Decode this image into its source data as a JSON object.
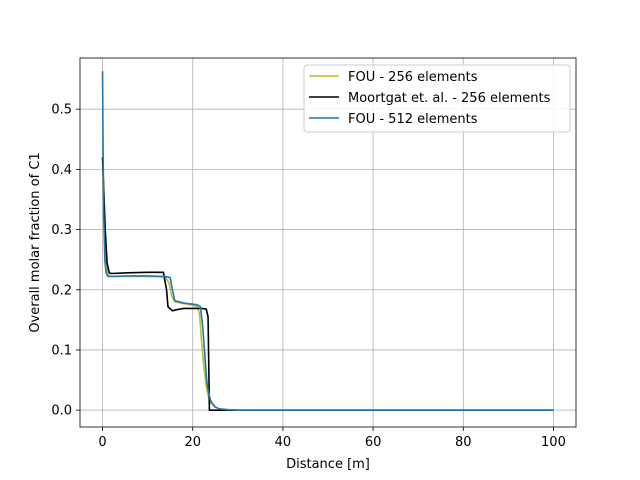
{
  "chart_data": {
    "type": "line",
    "xlabel": "Distance [m]",
    "ylabel": "Overall molar fraction of C1",
    "xlim": [
      -5,
      105
    ],
    "ylim": [
      -0.028,
      0.585
    ],
    "xticks": [
      0,
      20,
      40,
      60,
      80,
      100
    ],
    "yticks": [
      0.0,
      0.1,
      0.2,
      0.3,
      0.4,
      0.5
    ],
    "xtick_labels": [
      "0",
      "20",
      "40",
      "60",
      "80",
      "100"
    ],
    "ytick_labels": [
      "0.0",
      "0.1",
      "0.2",
      "0.3",
      "0.4",
      "0.5"
    ],
    "grid": true,
    "legend_position": "upper right",
    "series": [
      {
        "name": "FOU - 256 elements",
        "color": "#bcbd22",
        "x": [
          0,
          0.2,
          0.4,
          0.8,
          1.2,
          2,
          5,
          10,
          14,
          14.8,
          15.3,
          16,
          18,
          20,
          21,
          21.5,
          22,
          22.5,
          23,
          23.5,
          24,
          25,
          26,
          28,
          30,
          40,
          60,
          80,
          100
        ],
        "y": [
          0.42,
          0.35,
          0.3,
          0.24,
          0.225,
          0.222,
          0.222,
          0.222,
          0.221,
          0.21,
          0.19,
          0.18,
          0.177,
          0.174,
          0.172,
          0.16,
          0.11,
          0.07,
          0.04,
          0.022,
          0.012,
          0.005,
          0.002,
          0.0005,
          0.0,
          0.0,
          0.0,
          0.0,
          0.0
        ]
      },
      {
        "name": "Moortgat et. al. - 256 elements",
        "color": "#000000",
        "x": [
          0,
          0.3,
          0.6,
          1.0,
          1.5,
          2,
          5,
          10,
          13.5,
          14.2,
          14.5,
          15.5,
          16.5,
          18,
          20,
          22,
          23,
          23.4,
          23.7,
          24.5,
          26,
          30,
          40,
          60,
          80,
          100
        ],
        "y": [
          0.42,
          0.36,
          0.3,
          0.245,
          0.228,
          0.227,
          0.228,
          0.229,
          0.229,
          0.2,
          0.172,
          0.165,
          0.167,
          0.169,
          0.169,
          0.169,
          0.168,
          0.155,
          0.0,
          0.0,
          0.0,
          0.0,
          0.0,
          0.0,
          0.0,
          0.0
        ]
      },
      {
        "name": "FOU - 512 elements",
        "color": "#1f77b4",
        "x": [
          0,
          0.1,
          0.25,
          0.5,
          0.8,
          1.2,
          2,
          5,
          10,
          14,
          15,
          15.5,
          16,
          18,
          20,
          21,
          21.7,
          22.2,
          22.7,
          23.1,
          23.5,
          24,
          25,
          26,
          28,
          30,
          40,
          60,
          80,
          100
        ],
        "y": [
          0.563,
          0.45,
          0.33,
          0.25,
          0.228,
          0.222,
          0.222,
          0.223,
          0.223,
          0.222,
          0.22,
          0.2,
          0.182,
          0.178,
          0.176,
          0.175,
          0.172,
          0.14,
          0.09,
          0.05,
          0.03,
          0.015,
          0.005,
          0.002,
          0.0005,
          0.0,
          0.0,
          0.0,
          0.0,
          0.0
        ]
      }
    ]
  }
}
